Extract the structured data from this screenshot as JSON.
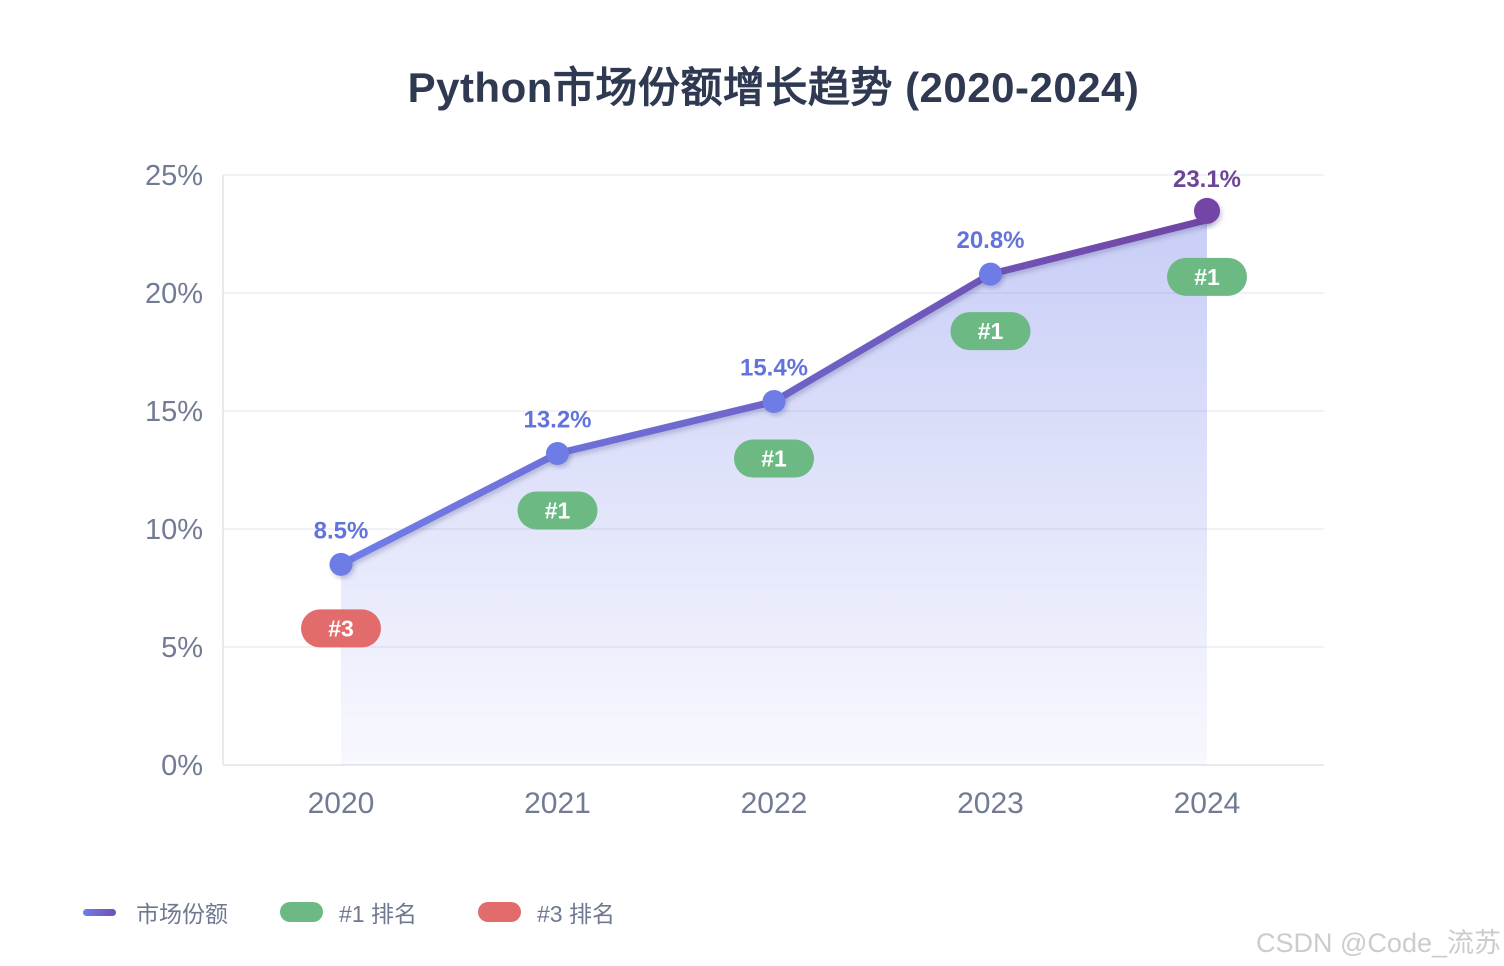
{
  "title": "Python市场份额增长趋势 (2020-2024)",
  "chart_data": {
    "type": "line",
    "title": "Python市场份额增长趋势 (2020-2024)",
    "categories": [
      "2020",
      "2021",
      "2022",
      "2023",
      "2024"
    ],
    "series": [
      {
        "name": "市场份额",
        "values": [
          8.5,
          13.2,
          15.4,
          20.8,
          23.1
        ],
        "unit": "%"
      }
    ],
    "point_labels": [
      "8.5%",
      "13.2%",
      "15.4%",
      "20.8%",
      "23.1%"
    ],
    "ranks": [
      "#3",
      "#1",
      "#1",
      "#1",
      "#1"
    ],
    "xlabel": "",
    "ylabel": "",
    "ylim": [
      0,
      25
    ],
    "ytick_values": [
      0,
      5,
      10,
      15,
      20,
      25
    ],
    "ytick_labels": [
      "0%",
      "5%",
      "10%",
      "15%",
      "20%",
      "25%"
    ],
    "grid": true,
    "area_fill": true,
    "legend_position": "bottom-left",
    "colors": {
      "line_start": "#6f7de8",
      "line_mid": "#6e64c8",
      "line_end": "#6f44a4",
      "marker": "#6e7ce6",
      "marker_last": "#7445a5",
      "point_label": "#6274db",
      "point_label_last": "#6b4597",
      "rank1_badge": "#6cb983",
      "rank3_badge": "#e26c6b",
      "badge_text": "#ffffff",
      "area_base": "#6f7de8",
      "axis_text": "#717b94",
      "gridline": "#ededf4",
      "axis_line": "#e0e3ec",
      "title_text": "#2f3a52"
    }
  },
  "legend": {
    "items": [
      {
        "label": "市场份额",
        "type": "line"
      },
      {
        "label": "#1 排名",
        "type": "pill",
        "color": "#6cb983"
      },
      {
        "label": "#3 排名",
        "type": "pill",
        "color": "#e26c6b"
      }
    ]
  },
  "watermark": "CSDN @Code_流苏"
}
